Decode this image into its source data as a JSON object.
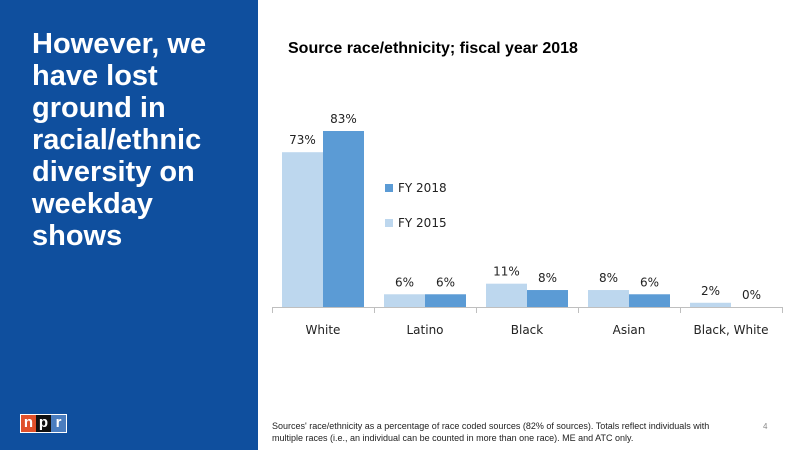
{
  "slide": {
    "headline": "However, we have lost ground in racial/ethnic diversity on weekday shows",
    "logo_letters": [
      "n",
      "p",
      "r"
    ],
    "footnote": "Sources' race/ethnicity as a percentage of race coded sources (82% of sources). Totals reflect individuals with multiple races (i.e., an individual can be counted in more than one race). ME and ATC only.",
    "page_number": "4",
    "colors": {
      "panel": "#0F4F9E",
      "npr_red": "#E0502A",
      "npr_black": "#111111",
      "npr_blue": "#4A7DBF"
    }
  },
  "chart_data": {
    "type": "bar",
    "title": "Source race/ethnicity; fiscal year 2018",
    "categories": [
      "White",
      "Latino",
      "Black",
      "Asian",
      "Black, White"
    ],
    "series": [
      {
        "name": "FY 2015",
        "values": [
          73,
          6,
          11,
          8,
          2
        ],
        "labels": [
          "73%",
          "6%",
          "11%",
          "8%",
          "2%"
        ],
        "color": "#BDD7EE"
      },
      {
        "name": "FY 2018",
        "values": [
          83,
          6,
          8,
          6,
          0
        ],
        "labels": [
          "83%",
          "6%",
          "8%",
          "6%",
          "0%"
        ],
        "color": "#5B9BD5"
      }
    ],
    "legend_order": [
      "FY 2018",
      "FY 2015"
    ],
    "legend_placement": "inside-left-middle",
    "ylim": [
      0,
      83
    ],
    "grid": false,
    "y_axis_visible": false
  }
}
